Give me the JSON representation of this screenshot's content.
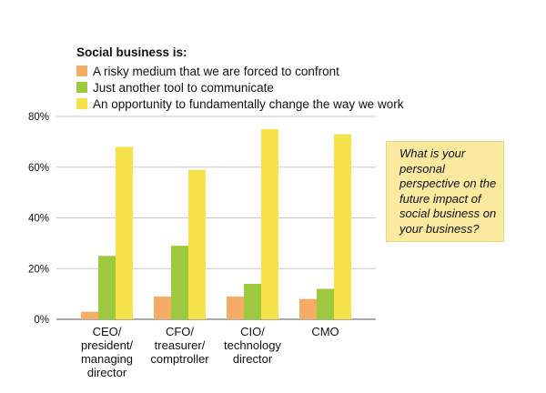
{
  "legend": {
    "title": "Social business is:",
    "items": [
      {
        "label": "A risky medium that we are forced to confront",
        "color": "#f5ad66"
      },
      {
        "label": "Just another tool to communicate",
        "color": "#9dc93e"
      },
      {
        "label": "An opportunity to fundamentally change the way we work",
        "color": "#f5e24a"
      }
    ]
  },
  "question": "What is your personal perspective on the future impact of social business on your business?",
  "chart_data": {
    "type": "bar",
    "categories": [
      [
        "CEO/",
        "president/",
        "managing",
        "director"
      ],
      [
        "CFO/",
        "treasurer/",
        "comptroller"
      ],
      [
        "CIO/",
        "technology",
        "director"
      ],
      [
        "CMO"
      ]
    ],
    "series": [
      {
        "name": "A risky medium that we are forced to confront",
        "color": "#f5ad66",
        "values": [
          3,
          9,
          9,
          8
        ]
      },
      {
        "name": "Just another tool to communicate",
        "color": "#9dc93e",
        "values": [
          25,
          29,
          14,
          12
        ]
      },
      {
        "name": "An opportunity to fundamentally change the way we work",
        "color": "#f5e24a",
        "values": [
          68,
          59,
          75,
          73
        ]
      }
    ],
    "yticks": [
      "0%",
      "20%",
      "40%",
      "60%",
      "80%"
    ],
    "ylim": [
      0,
      80
    ],
    "grid": true
  }
}
